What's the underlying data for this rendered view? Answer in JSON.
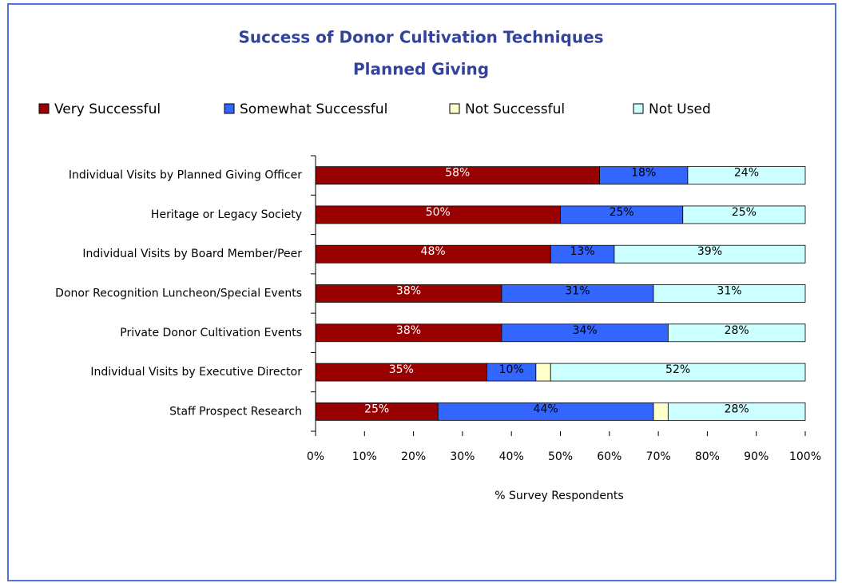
{
  "chart_data": {
    "type": "stacked-barh",
    "title": "Success of Donor Cultivation Techniques",
    "subtitle": "Planned Giving",
    "xlabel": "% Survey Respondents",
    "categories": [
      "Individual Visits by Planned Giving Officer",
      "Heritage or Legacy Society",
      "Individual Visits by Board Member/Peer",
      "Donor Recognition Luncheon/Special Events",
      "Private Donor Cultivation Events",
      "Individual Visits by Executive Director",
      "Staff Prospect Research"
    ],
    "series": [
      {
        "name": "Very Successful",
        "color": "#990000",
        "values": [
          58,
          50,
          48,
          38,
          38,
          35,
          25
        ],
        "value_labels": [
          "58%",
          "50%",
          "48%",
          "38%",
          "38%",
          "35%",
          "25%"
        ]
      },
      {
        "name": "Somewhat Successful",
        "color": "#3366ff",
        "values": [
          18,
          25,
          13,
          31,
          34,
          10,
          44
        ],
        "value_labels": [
          "18%",
          "25%",
          "13%",
          "31%",
          "34%",
          "10%",
          "44%"
        ]
      },
      {
        "name": "Not Successful",
        "color": "#ffffcc",
        "values": [
          0,
          0,
          0,
          0,
          0,
          3,
          3
        ]
      },
      {
        "name": "Not Used",
        "color": "#ccffff",
        "values": [
          24,
          25,
          39,
          31,
          28,
          52,
          28
        ],
        "value_labels": [
          "24%",
          "25%",
          "39%",
          "31%",
          "28%",
          "52%",
          "28%"
        ]
      }
    ],
    "xlim": [
      0,
      100
    ],
    "xticks": [
      {
        "value": 0,
        "label": "0%"
      },
      {
        "value": 10,
        "label": "10%"
      },
      {
        "value": 20,
        "label": "20%"
      },
      {
        "value": 30,
        "label": "30%"
      },
      {
        "value": 40,
        "label": "40%"
      },
      {
        "value": 50,
        "label": "50%"
      },
      {
        "value": 60,
        "label": "60%"
      },
      {
        "value": 70,
        "label": "70%"
      },
      {
        "value": 80,
        "label": "80%"
      },
      {
        "value": 90,
        "label": "90%"
      },
      {
        "value": 100,
        "label": "100%"
      }
    ],
    "legend": "top"
  }
}
